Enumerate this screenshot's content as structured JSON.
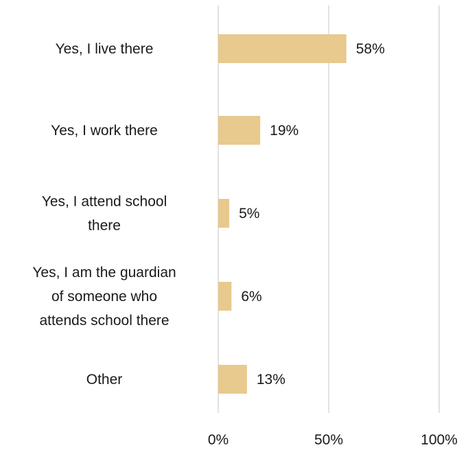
{
  "chart_data": {
    "type": "bar",
    "orientation": "horizontal",
    "categories": [
      [
        "Yes, I live there"
      ],
      [
        "Yes, I work there"
      ],
      [
        "Yes, I attend school",
        "there"
      ],
      [
        "Yes, I am the guardian",
        "of someone who",
        "attends school there"
      ],
      [
        "Other"
      ]
    ],
    "values": [
      58,
      19,
      5,
      6,
      13
    ],
    "data_labels": [
      "58%",
      "19%",
      "5%",
      "6%",
      "13%"
    ],
    "xlim": [
      0,
      100
    ],
    "x_ticks": [
      0,
      50,
      100
    ],
    "x_tick_labels": [
      "0%",
      "50%",
      "100%"
    ],
    "bar_color": "#E8C98E",
    "grid_color": "#D9D9D9",
    "vertical_grid": true,
    "title": "",
    "xlabel": "",
    "ylabel": ""
  }
}
